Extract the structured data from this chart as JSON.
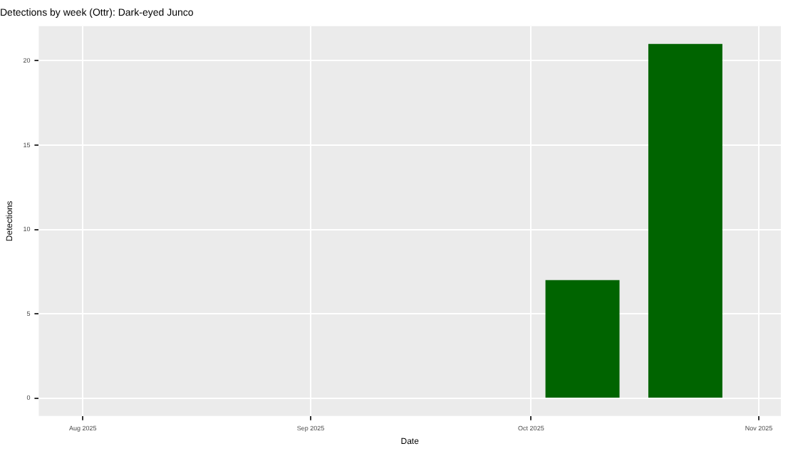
{
  "chart_data": {
    "type": "bar",
    "title": "Detections by week (Ottr): Dark-eyed Junco",
    "xlabel": "Date",
    "ylabel": "Detections",
    "x": [
      "2025-10-08",
      "2025-10-22"
    ],
    "values": [
      7,
      21
    ],
    "color": "#006400",
    "xlim": [
      "2025-07-26",
      "2025-11-04"
    ],
    "xticks": [
      {
        "value": "2025-08-01",
        "label": "Aug 2025"
      },
      {
        "value": "2025-09-01",
        "label": "Sep 2025"
      },
      {
        "value": "2025-10-01",
        "label": "Oct 2025"
      },
      {
        "value": "2025-11-01",
        "label": "Nov 2025"
      }
    ],
    "ylim": [
      -1.05,
      22.05
    ],
    "yticks": [
      0,
      5,
      10,
      15,
      20
    ],
    "grid": true,
    "legend": false
  }
}
